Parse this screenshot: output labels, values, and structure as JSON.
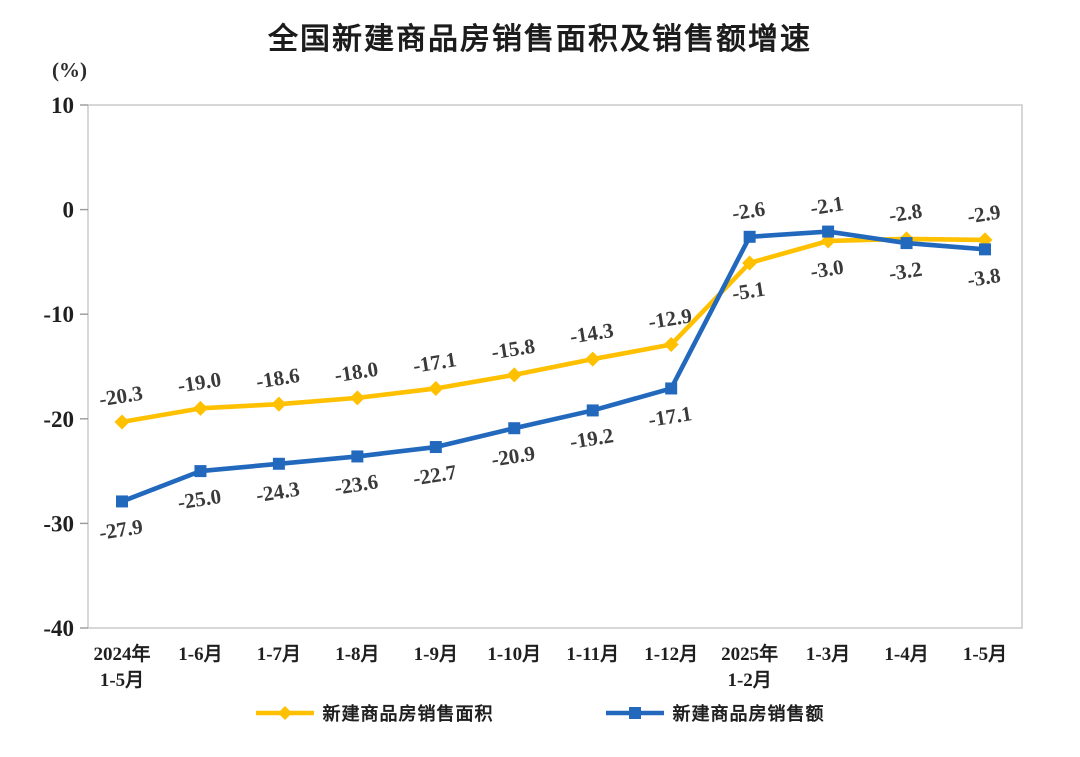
{
  "chart_data": {
    "type": "line",
    "title": "全国新建商品房销售面积及销售额增速",
    "unit_label": "(%)",
    "categories": [
      "2024年\n1-5月",
      "1-6月",
      "1-7月",
      "1-8月",
      "1-9月",
      "1-10月",
      "1-11月",
      "1-12月",
      "2025年\n1-2月",
      "1-3月",
      "1-4月",
      "1-5月"
    ],
    "ylim": [
      -40,
      10
    ],
    "yticks": [
      10,
      0,
      -10,
      -20,
      -30,
      -40
    ],
    "grid": false,
    "legend_position": "bottom",
    "axis_color": "#c6c6c6",
    "series": [
      {
        "name": "新建商品房销售面积",
        "color": "#FFC000",
        "marker": "diamond",
        "values": [
          -20.3,
          -19.0,
          -18.6,
          -18.0,
          -17.1,
          -15.8,
          -14.3,
          -12.9,
          -5.1,
          -3.0,
          -2.8,
          -2.9
        ],
        "label_placement": [
          "above",
          "above",
          "above",
          "above",
          "above",
          "above",
          "above",
          "above",
          "below",
          "below",
          "above",
          "above"
        ]
      },
      {
        "name": "新建商品房销售额",
        "color": "#2269BE",
        "marker": "square",
        "values": [
          -27.9,
          -25.0,
          -24.3,
          -23.6,
          -22.7,
          -20.9,
          -19.2,
          -17.1,
          -2.6,
          -2.1,
          -3.2,
          -3.8
        ],
        "label_placement": [
          "below",
          "below",
          "below",
          "below",
          "below",
          "below",
          "below",
          "below",
          "above",
          "above",
          "below",
          "below"
        ]
      }
    ]
  }
}
